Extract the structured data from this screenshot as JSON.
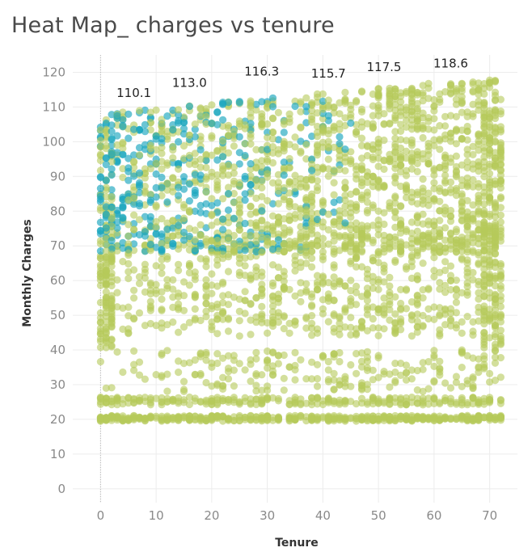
{
  "chart_data": {
    "type": "scatter",
    "title": "Heat Map_ charges vs tenure",
    "xlabel": "Tenure",
    "ylabel": "Monthly Charges",
    "xlim": [
      -5,
      75
    ],
    "ylim": [
      -4,
      125
    ],
    "xticks": [
      0,
      10,
      20,
      30,
      40,
      50,
      60,
      70
    ],
    "yticks": [
      0,
      10,
      20,
      30,
      40,
      50,
      60,
      70,
      80,
      90,
      100,
      110,
      120
    ],
    "grid": true,
    "legend": "none",
    "series": [
      {
        "color": "#b5c95a",
        "opacity": 0.6
      },
      {
        "color": "#1aa6bf",
        "opacity": 0.65
      }
    ],
    "annotations": [
      {
        "text": "110.1",
        "x": 6,
        "y": 110.1
      },
      {
        "text": "113.0",
        "x": 16,
        "y": 113.0
      },
      {
        "text": "116.3",
        "x": 29,
        "y": 116.3
      },
      {
        "text": "115.7",
        "x": 41,
        "y": 115.7
      },
      {
        "text": "117.5",
        "x": 51,
        "y": 117.5
      },
      {
        "text": "118.6",
        "x": 63,
        "y": 118.6
      }
    ]
  }
}
